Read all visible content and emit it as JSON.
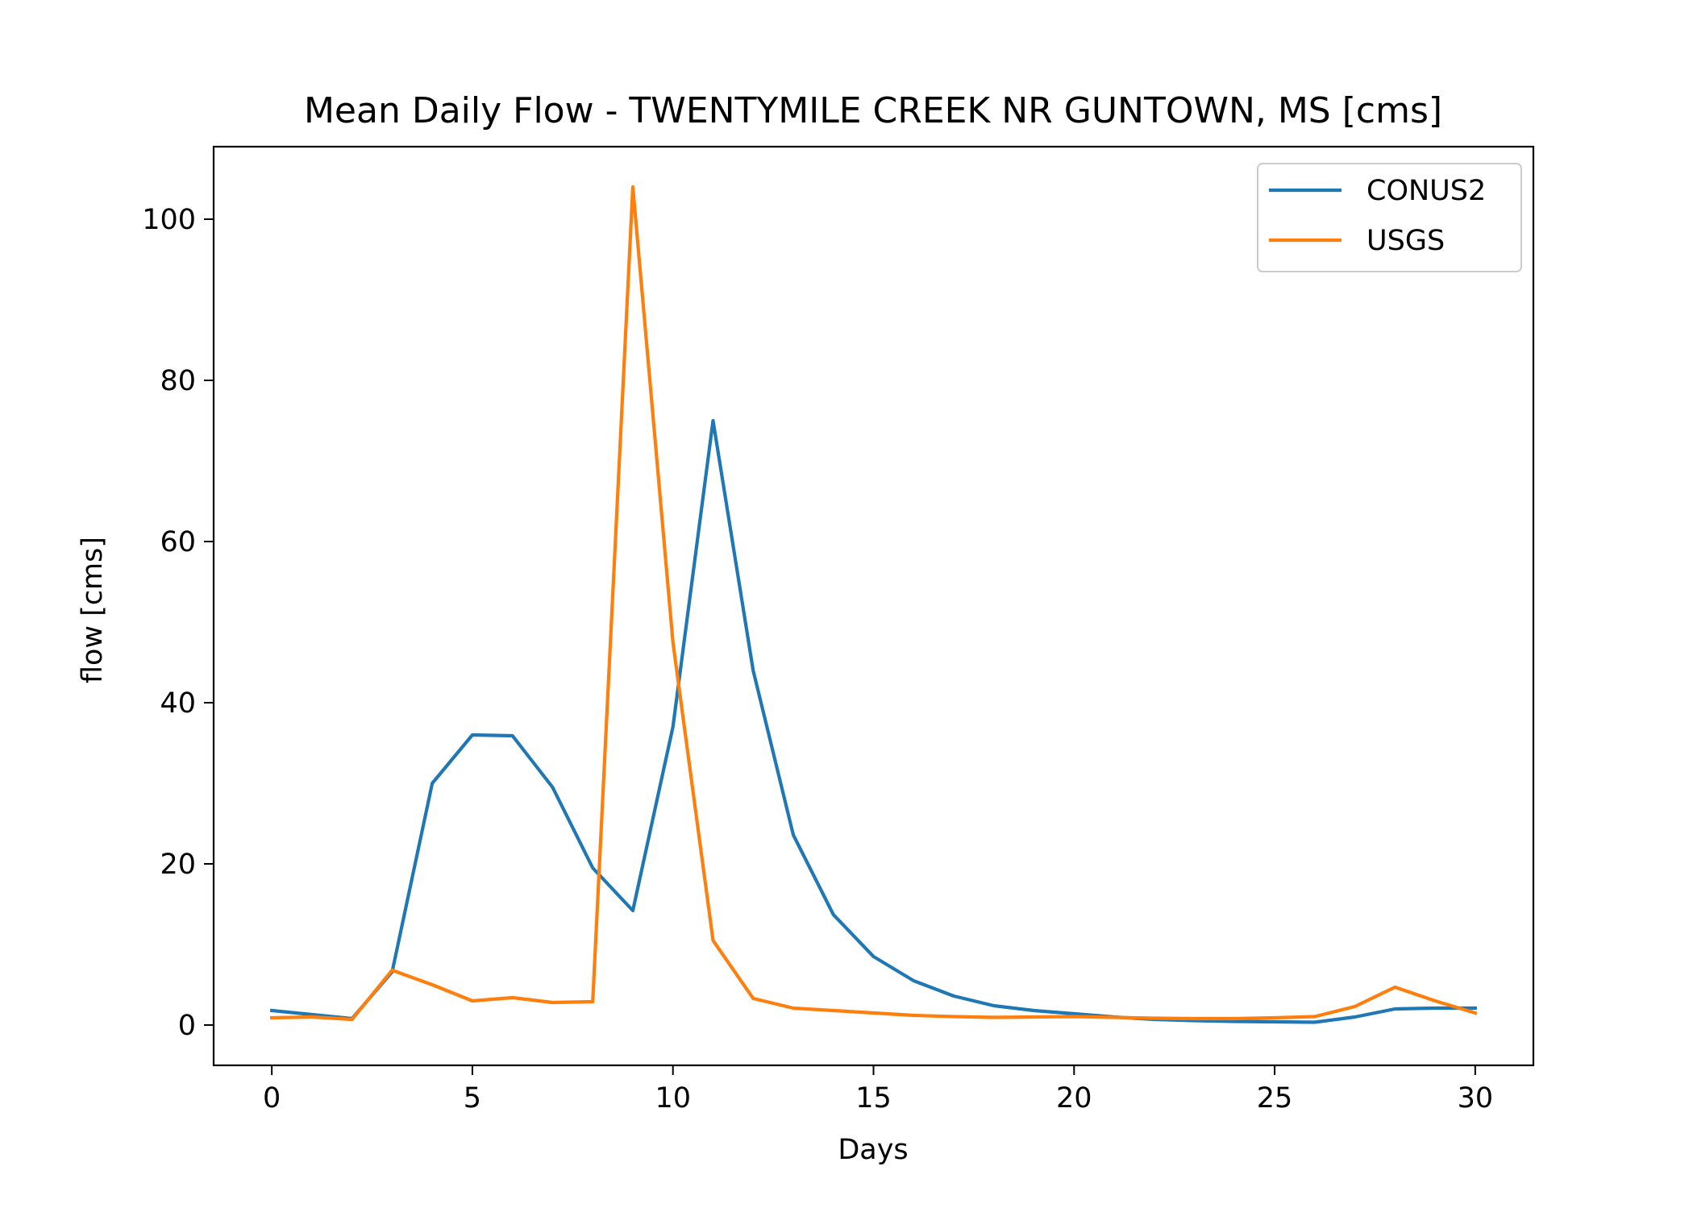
{
  "chart_data": {
    "type": "line",
    "title": "Mean Daily Flow - TWENTYMILE CREEK NR GUNTOWN, MS [cms]",
    "xlabel": "Days",
    "ylabel": "flow [cms]",
    "xlim": [
      -1.45,
      31.45
    ],
    "ylim": [
      -5,
      109
    ],
    "xticks": [
      0,
      5,
      10,
      15,
      20,
      25,
      30
    ],
    "yticks": [
      0,
      20,
      40,
      60,
      80,
      100
    ],
    "grid": false,
    "legend_position": "top-right",
    "x": [
      0,
      1,
      2,
      3,
      4,
      5,
      6,
      7,
      8,
      9,
      10,
      11,
      12,
      13,
      14,
      15,
      16,
      17,
      18,
      19,
      20,
      21,
      22,
      23,
      24,
      25,
      26,
      27,
      28,
      29,
      30
    ],
    "series": [
      {
        "name": "CONUS2",
        "color": "#1f77b4",
        "values": [
          1.8,
          1.3,
          0.8,
          6.6,
          30.0,
          36.0,
          35.9,
          29.5,
          19.5,
          14.2,
          37.0,
          75.0,
          44.0,
          23.6,
          13.7,
          8.5,
          5.5,
          3.6,
          2.4,
          1.8,
          1.4,
          1.0,
          0.7,
          0.55,
          0.45,
          0.4,
          0.35,
          1.0,
          2.0,
          2.1,
          2.1
        ]
      },
      {
        "name": "USGS",
        "color": "#ff7f0e",
        "values": [
          0.9,
          1.0,
          0.7,
          6.8,
          5.0,
          3.0,
          3.4,
          2.8,
          2.9,
          104.0,
          47.5,
          10.5,
          3.3,
          2.1,
          1.8,
          1.5,
          1.2,
          1.05,
          0.95,
          1.0,
          1.05,
          0.95,
          0.85,
          0.8,
          0.8,
          0.9,
          1.05,
          2.3,
          4.7,
          3.0,
          1.5
        ]
      }
    ]
  }
}
